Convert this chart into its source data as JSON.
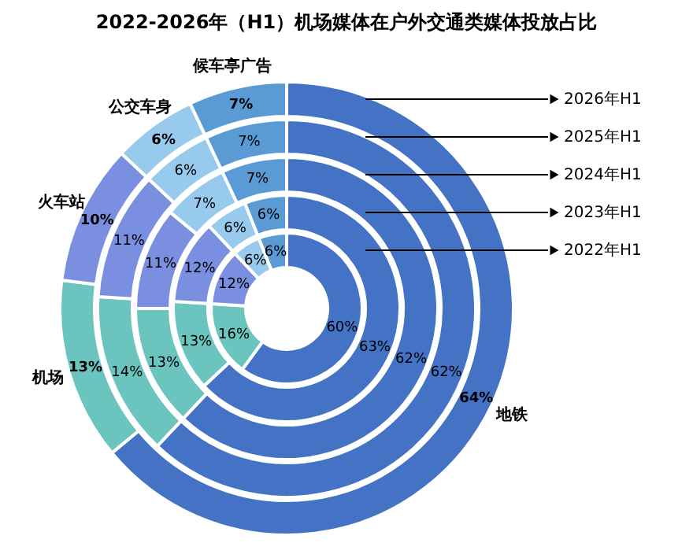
{
  "chart_data": {
    "type": "donut",
    "title": "2022-2026年（H1）机场媒体在户外交通类媒体投放占比",
    "categories": [
      "地铁",
      "机场",
      "火车站",
      "公交车身",
      "候车亭广告"
    ],
    "colors": [
      "#4472c4",
      "#6bc4be",
      "#7b8fe0",
      "#98caee",
      "#5b9bd5"
    ],
    "series": [
      {
        "name": "2026年H1",
        "values": [
          64,
          13,
          10,
          6,
          7
        ],
        "value_labels": [
          "64%",
          "13%",
          "10%",
          "6%",
          "7%"
        ]
      },
      {
        "name": "2025年H1",
        "values": [
          62,
          14,
          11,
          6,
          7
        ],
        "value_labels": [
          "62%",
          "14%",
          "11%",
          "6%",
          "7%"
        ]
      },
      {
        "name": "2024年H1",
        "values": [
          62,
          13,
          11,
          7,
          7
        ],
        "value_labels": [
          "62%",
          "13%",
          "11%",
          "7%",
          "7%"
        ]
      },
      {
        "name": "2023年H1",
        "values": [
          63,
          13,
          12,
          6,
          6
        ],
        "value_labels": [
          "63%",
          "13%",
          "12%",
          "6%",
          "6%"
        ]
      },
      {
        "name": "2022年H1",
        "values": [
          60,
          16,
          12,
          6,
          6
        ],
        "value_labels": [
          "60%",
          "16%",
          "12%",
          "6%",
          "6%"
        ]
      }
    ]
  }
}
